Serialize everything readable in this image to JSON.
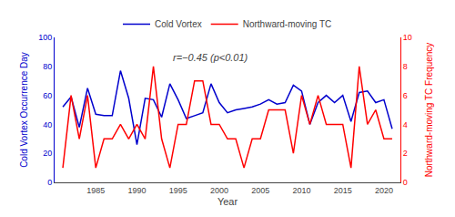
{
  "chart_data": {
    "type": "line",
    "x": [
      1981,
      1982,
      1983,
      1984,
      1985,
      1986,
      1987,
      1988,
      1989,
      1990,
      1991,
      1992,
      1993,
      1994,
      1995,
      1996,
      1997,
      1998,
      1999,
      2000,
      2001,
      2002,
      2003,
      2004,
      2005,
      2006,
      2007,
      2008,
      2009,
      2010,
      2011,
      2012,
      2013,
      2014,
      2015,
      2016,
      2017,
      2018,
      2019,
      2020,
      2021
    ],
    "series": [
      {
        "name": "Cold Vortex",
        "color": "#0000cd",
        "axis": "y",
        "values": [
          52,
          59,
          38,
          65,
          47,
          46,
          46,
          77,
          58,
          26,
          58,
          57,
          45,
          68,
          57,
          44,
          46,
          48,
          68,
          55,
          48,
          50,
          51,
          52,
          54,
          57,
          54,
          55,
          67,
          63,
          40,
          55,
          60,
          55,
          60,
          42,
          62,
          63,
          55,
          57,
          37
        ]
      },
      {
        "name": "Northward-moving TC",
        "color": "#ff0000",
        "axis": "y2",
        "values": [
          1,
          6,
          3,
          6,
          1,
          3,
          3,
          4,
          3,
          4,
          3,
          8,
          3,
          1,
          4,
          4,
          7,
          7,
          4,
          4,
          3,
          3,
          1,
          3,
          3,
          5,
          5,
          5,
          2,
          6,
          4,
          6,
          4,
          4,
          4,
          1,
          8,
          4,
          5,
          3,
          3
        ]
      }
    ],
    "xlabel": "Year",
    "ylabel": "Cold Vortex Occurrence Day",
    "y2label": "Northward-moving TC Frequency",
    "annotations": [
      "r=−0.45 (p<0.01)"
    ],
    "xlim": [
      1980,
      2022
    ],
    "xticks": [
      1985,
      1990,
      1995,
      2000,
      2005,
      2010,
      2015,
      2020
    ],
    "ylim": [
      0,
      100
    ],
    "yticks": [
      0,
      20,
      40,
      60,
      80,
      100
    ],
    "y2lim": [
      0,
      10
    ],
    "y2ticks": [
      0,
      2,
      4,
      6,
      8,
      10
    ],
    "legend": "upper center",
    "grid": false
  }
}
